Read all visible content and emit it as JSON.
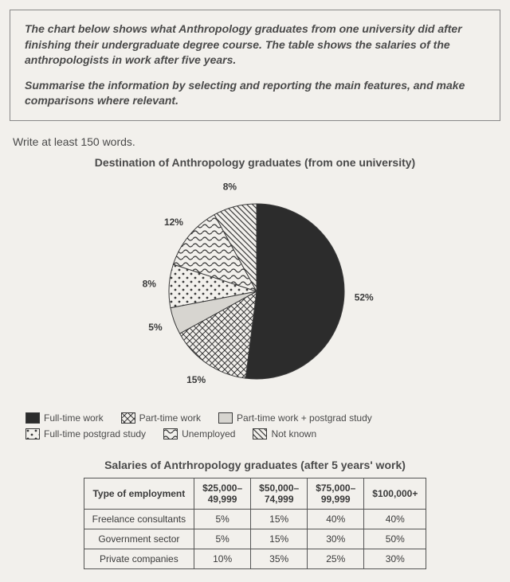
{
  "prompt": {
    "p1": "The chart below shows what Anthropology graduates from one university did after finishing their undergraduate degree course. The table shows the salaries of the anthropologists in work after five years.",
    "p2": "Summarise the information by selecting and reporting the main features, and make comparisons where relevant."
  },
  "instruction": "Write at least 150 words.",
  "pie": {
    "title": "Destination of Anthropology graduates (from one university)",
    "slices": [
      {
        "label": "Full-time work",
        "value": 52,
        "display": "52%",
        "pattern": "solid"
      },
      {
        "label": "Part-time work",
        "value": 15,
        "display": "15%",
        "pattern": "crosshatch"
      },
      {
        "label": "Part-time work + postgrad study",
        "value": 5,
        "display": "5%",
        "pattern": "light"
      },
      {
        "label": "Full-time postgrad study",
        "value": 8,
        "display": "8%",
        "pattern": "dots"
      },
      {
        "label": "Unemployed",
        "value": 12,
        "display": "12%",
        "pattern": "waves"
      },
      {
        "label": "Not known",
        "value": 8,
        "display": "8%",
        "pattern": "diag"
      }
    ],
    "radius": 110,
    "label_radius": 135,
    "start_angle_deg": -90,
    "colors": {
      "solid": "#2c2c2c",
      "light": "#d7d5d0",
      "stroke": "#3a3a3a",
      "bg": "#f2f0ec",
      "text": "#3a3a3a"
    },
    "label_fontsize": 12
  },
  "legend_rows": [
    [
      0,
      1,
      2
    ],
    [
      3,
      4,
      5
    ]
  ],
  "table": {
    "title": "Salaries of Antrhropology graduates (after 5 years' work)",
    "header_first": "Type of employment",
    "columns": [
      "$25,000–49,999",
      "$50,000–74,999",
      "$75,000–99,999",
      "$100,000+"
    ],
    "rows": [
      {
        "name": "Freelance consultants",
        "cells": [
          "5%",
          "15%",
          "40%",
          "40%"
        ]
      },
      {
        "name": "Government sector",
        "cells": [
          "5%",
          "15%",
          "30%",
          "50%"
        ]
      },
      {
        "name": "Private companies",
        "cells": [
          "10%",
          "35%",
          "25%",
          "30%"
        ]
      }
    ]
  }
}
